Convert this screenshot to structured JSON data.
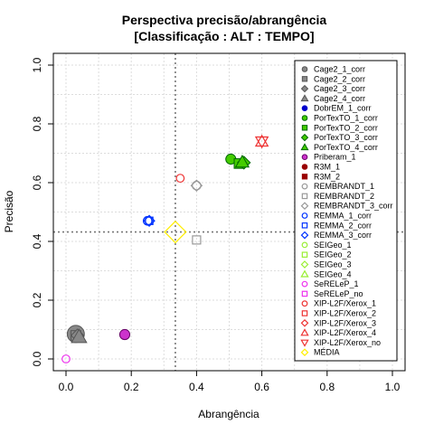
{
  "chart_data": {
    "type": "scatter",
    "title": "Perspectiva precisão/abrangência",
    "subtitle": "[Classificação : ALT : TEMPO]",
    "xlabel": "Abrangência",
    "ylabel": "Precisão",
    "xlim": [
      0,
      1
    ],
    "ylim": [
      0,
      1
    ],
    "xticks": [
      "0.0",
      "0.2",
      "0.4",
      "0.6",
      "0.8",
      "1.0"
    ],
    "yticks": [
      "0.0",
      "0.2",
      "0.4",
      "0.6",
      "0.8",
      "1.0"
    ],
    "grid": true,
    "legend_position": "top-right",
    "reference_lines": {
      "x": 0.335,
      "y": 0.432
    },
    "series": [
      {
        "name": "Cage2_1_corr",
        "shape": "circle",
        "color": "#555555",
        "fill": "#888888",
        "x": 0.03,
        "y": 0.085,
        "size": 2.2
      },
      {
        "name": "Cage2_2_corr",
        "shape": "square",
        "color": "#555555",
        "fill": "#888888",
        "x": 0.03,
        "y": 0.08,
        "size": 1.3
      },
      {
        "name": "Cage2_3_corr",
        "shape": "diamond",
        "color": "#555555",
        "fill": "#888888",
        "x": 0.035,
        "y": 0.08,
        "size": 1.3
      },
      {
        "name": "Cage2_4_corr",
        "shape": "triangle",
        "color": "#555555",
        "fill": "#888888",
        "x": 0.04,
        "y": 0.075,
        "size": 1.5
      },
      {
        "name": "DobrEM_1_corr",
        "shape": "circle",
        "color": "#0000cc",
        "fill": "#0000cc",
        "x": null,
        "y": null,
        "size": 1
      },
      {
        "name": "PorTexTO_1_corr",
        "shape": "circle",
        "color": "#006600",
        "fill": "#44cc00",
        "x": 0.505,
        "y": 0.68,
        "size": 1.3
      },
      {
        "name": "PorTexTO_2_corr",
        "shape": "square",
        "color": "#006600",
        "fill": "#44cc00",
        "x": 0.53,
        "y": 0.665,
        "size": 1.3
      },
      {
        "name": "PorTexTO_3_corr",
        "shape": "diamond",
        "color": "#006600",
        "fill": "#44cc00",
        "x": 0.545,
        "y": 0.668,
        "size": 1.3
      },
      {
        "name": "PorTexTO_4_corr",
        "shape": "triangle",
        "color": "#006600",
        "fill": "#44cc00",
        "x": 0.54,
        "y": 0.67,
        "size": 1.3
      },
      {
        "name": "Priberam_1",
        "shape": "circle",
        "color": "#660066",
        "fill": "#cc33cc",
        "x": 0.18,
        "y": 0.083,
        "size": 1.3
      },
      {
        "name": "R3M_1",
        "shape": "circle",
        "color": "#990000",
        "fill": "#990000",
        "x": null,
        "y": null,
        "size": 1
      },
      {
        "name": "R3M_2",
        "shape": "square",
        "color": "#990000",
        "fill": "#990000",
        "x": null,
        "y": null,
        "size": 1
      },
      {
        "name": "REMBRANDT_1",
        "shape": "circle-open",
        "color": "#999999",
        "fill": "none",
        "x": 0.4,
        "y": 0.59,
        "size": 1.1
      },
      {
        "name": "REMBRANDT_2",
        "shape": "square-open",
        "color": "#999999",
        "fill": "none",
        "x": 0.4,
        "y": 0.405,
        "size": 1.1
      },
      {
        "name": "REMBRANDT_3_corr",
        "shape": "diamond-open",
        "color": "#999999",
        "fill": "none",
        "x": 0.4,
        "y": 0.59,
        "size": 1.1
      },
      {
        "name": "REMMA_1_corr",
        "shape": "circle-open",
        "color": "#0033ff",
        "fill": "none",
        "x": 0.25,
        "y": 0.47,
        "size": 1.1
      },
      {
        "name": "REMMA_2_corr",
        "shape": "square-open",
        "color": "#0033ff",
        "fill": "none",
        "x": 0.255,
        "y": 0.47,
        "size": 1.0
      },
      {
        "name": "REMMA_3_corr",
        "shape": "diamond-open",
        "color": "#0033ff",
        "fill": "none",
        "x": 0.255,
        "y": 0.47,
        "size": 1.1
      },
      {
        "name": "SEIGeo_1",
        "shape": "circle-open",
        "color": "#99ee33",
        "fill": "none",
        "x": null,
        "y": null,
        "size": 1
      },
      {
        "name": "SEIGeo_2",
        "shape": "square-open",
        "color": "#99ee33",
        "fill": "none",
        "x": null,
        "y": null,
        "size": 1
      },
      {
        "name": "SEIGeo_3",
        "shape": "diamond-open",
        "color": "#99ee33",
        "fill": "none",
        "x": null,
        "y": null,
        "size": 1
      },
      {
        "name": "SEIGeo_4",
        "shape": "triangle-open",
        "color": "#99ee33",
        "fill": "none",
        "x": null,
        "y": null,
        "size": 1
      },
      {
        "name": "SeRELeP_1",
        "shape": "circle-open",
        "color": "#ee33ee",
        "fill": "none",
        "x": 0.0,
        "y": 0.0,
        "size": 1.0
      },
      {
        "name": "SeRELeP_no",
        "shape": "square-open",
        "color": "#ee33ee",
        "fill": "none",
        "x": null,
        "y": null,
        "size": 1
      },
      {
        "name": "XIP-L2F/Xerox_1",
        "shape": "circle-open",
        "color": "#ee3333",
        "fill": "none",
        "x": 0.35,
        "y": 0.615,
        "size": 1.0
      },
      {
        "name": "XIP-L2F/Xerox_2",
        "shape": "square-open",
        "color": "#ee3333",
        "fill": "none",
        "x": null,
        "y": null,
        "size": 1
      },
      {
        "name": "XIP-L2F/Xerox_3",
        "shape": "diamond-open",
        "color": "#ee3333",
        "fill": "none",
        "x": null,
        "y": null,
        "size": 1
      },
      {
        "name": "XIP-L2F/Xerox_4",
        "shape": "triangle-open",
        "color": "#ee3333",
        "fill": "none",
        "x": 0.6,
        "y": 0.74,
        "size": 1.2
      },
      {
        "name": "XIP-L2F/Xerox_no",
        "shape": "triangle-down-open",
        "color": "#ee3333",
        "fill": "none",
        "x": 0.6,
        "y": 0.74,
        "size": 1.2
      },
      {
        "name": "MÉDIA",
        "shape": "diamond-open",
        "color": "#ffee00",
        "fill": "none",
        "x": 0.335,
        "y": 0.432,
        "size": 2.2
      }
    ]
  }
}
